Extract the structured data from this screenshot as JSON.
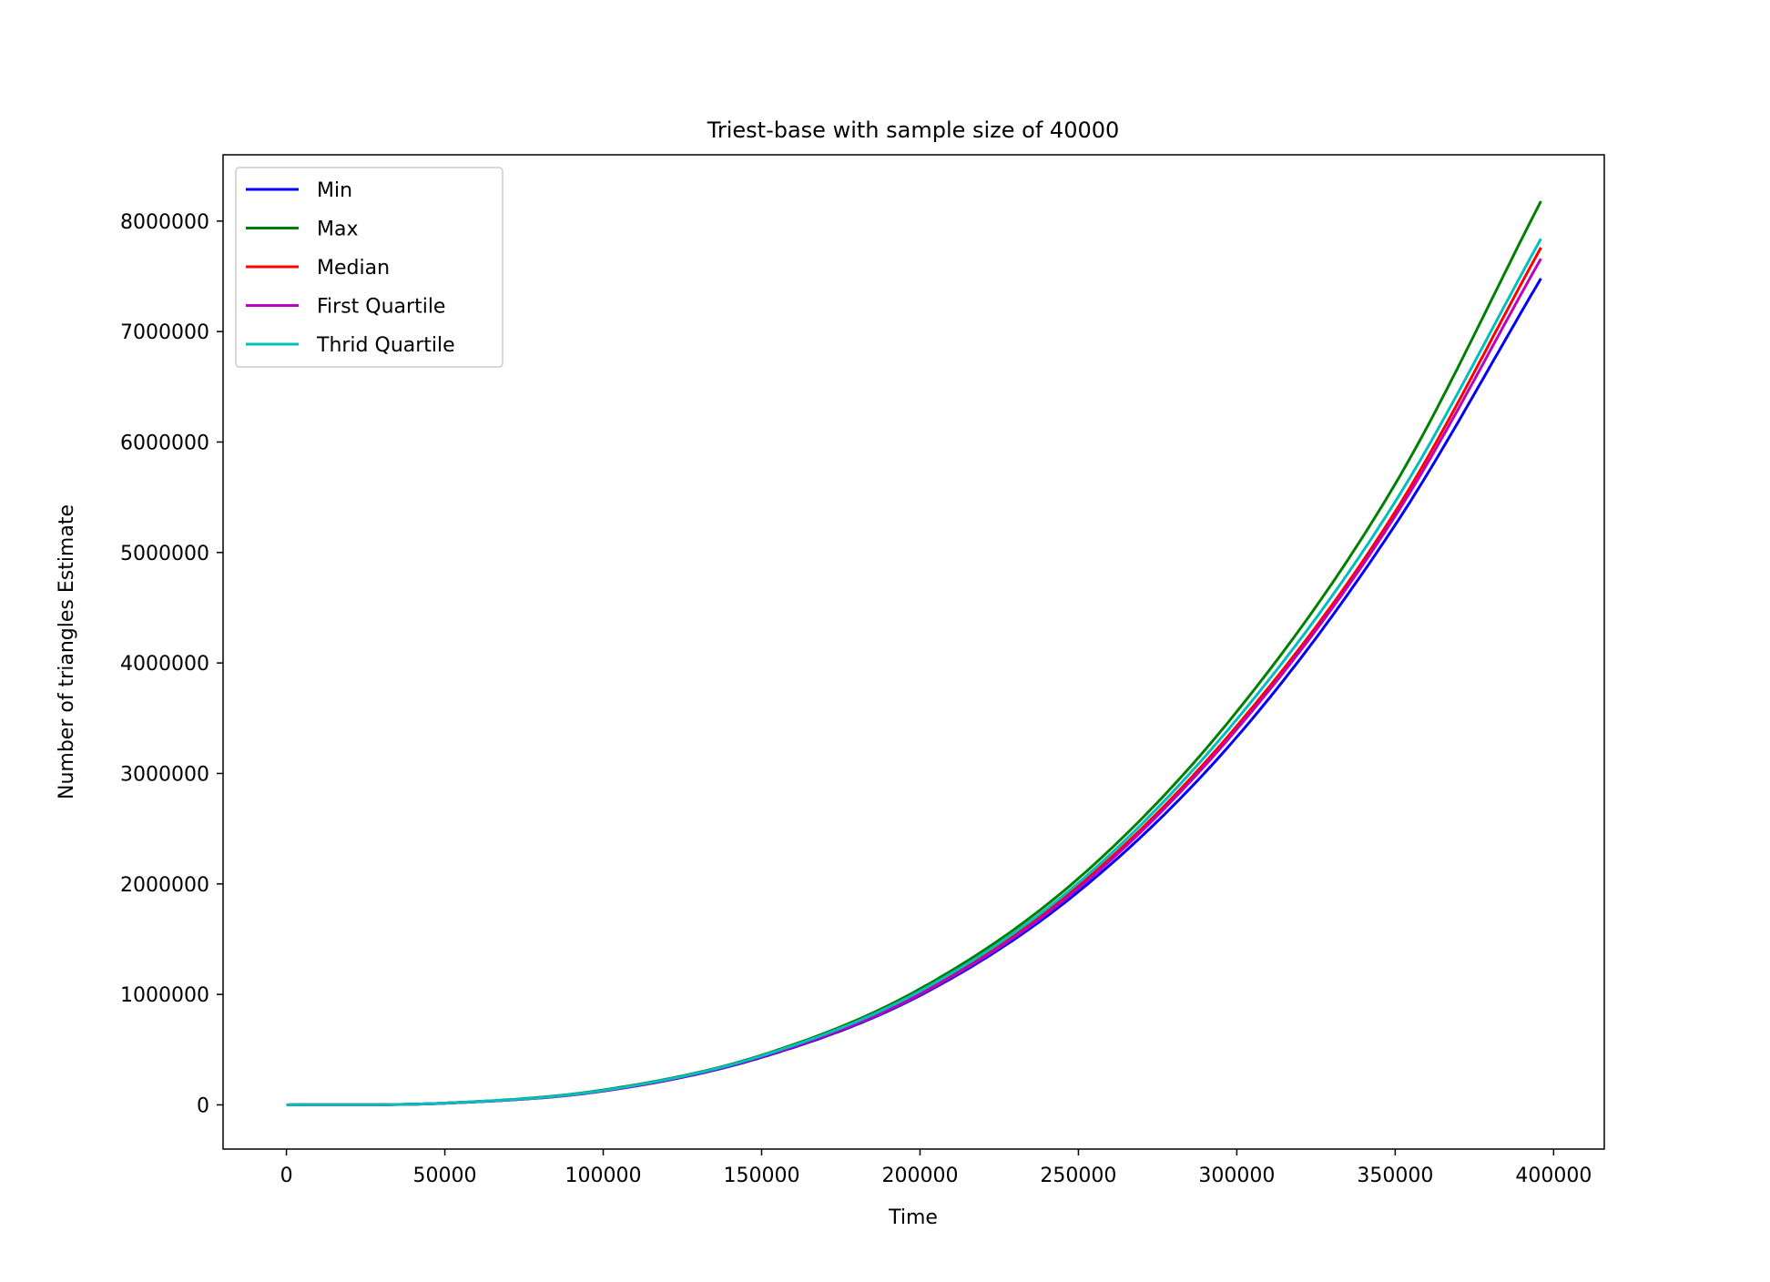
{
  "chart_data": {
    "type": "line",
    "title": "Triest-base with sample size of 40000",
    "xlabel": "Time",
    "ylabel": "Number of triangles Estimate",
    "xlim": [
      -20000,
      416000
    ],
    "ylim": [
      -400000,
      8600000
    ],
    "xticks": [
      0,
      50000,
      100000,
      150000,
      200000,
      250000,
      300000,
      350000,
      400000
    ],
    "xtick_labels": [
      "0",
      "50000",
      "100000",
      "150000",
      "200000",
      "250000",
      "300000",
      "350000",
      "400000"
    ],
    "yticks": [
      0,
      1000000,
      2000000,
      3000000,
      4000000,
      5000000,
      6000000,
      7000000,
      8000000
    ],
    "ytick_labels": [
      "0",
      "1000000",
      "2000000",
      "3000000",
      "4000000",
      "5000000",
      "6000000",
      "7000000",
      "8000000"
    ],
    "grid": false,
    "legend_position": "top-left",
    "x": [
      0,
      50000,
      100000,
      150000,
      200000,
      250000,
      300000,
      350000,
      396000
    ],
    "series": [
      {
        "name": "Min",
        "color": "#0000ff",
        "values": [
          0,
          15000,
          125000,
          430000,
          990000,
          1930000,
          3330000,
          5250000,
          7480000
        ]
      },
      {
        "name": "Max",
        "color": "#008000",
        "values": [
          0,
          16000,
          135000,
          450000,
          1050000,
          2050000,
          3560000,
          5620000,
          8180000
        ]
      },
      {
        "name": "Median",
        "color": "#ff0000",
        "values": [
          0,
          15500,
          128000,
          440000,
          1010000,
          1980000,
          3430000,
          5370000,
          7760000
        ]
      },
      {
        "name": "First Quartile",
        "color": "#bf00bf",
        "values": [
          0,
          15300,
          127000,
          436000,
          1000000,
          1960000,
          3400000,
          5330000,
          7660000
        ]
      },
      {
        "name": "Thrid Quartile",
        "color": "#00bfbf",
        "values": [
          0,
          15800,
          131000,
          444000,
          1030000,
          2010000,
          3490000,
          5460000,
          7840000
        ]
      }
    ]
  }
}
